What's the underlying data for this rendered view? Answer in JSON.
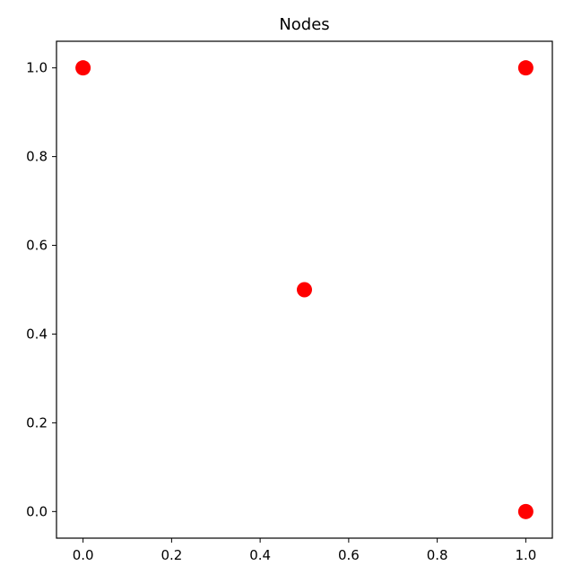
{
  "chart_data": {
    "type": "scatter",
    "title": "Nodes",
    "xlabel": "",
    "ylabel": "",
    "xlim": [
      -0.06,
      1.06
    ],
    "ylim": [
      -0.06,
      1.06
    ],
    "xticks": [
      "0.0",
      "0.2",
      "0.4",
      "0.6",
      "0.8",
      "1.0"
    ],
    "yticks": [
      "0.0",
      "0.2",
      "0.4",
      "0.6",
      "0.8",
      "1.0"
    ],
    "grid": false,
    "legend": "none",
    "marker_color": "#ff0000",
    "points": [
      {
        "x": 0.0,
        "y": 1.0
      },
      {
        "x": 1.0,
        "y": 1.0
      },
      {
        "x": 0.5,
        "y": 0.5
      },
      {
        "x": 1.0,
        "y": 0.0
      }
    ]
  }
}
